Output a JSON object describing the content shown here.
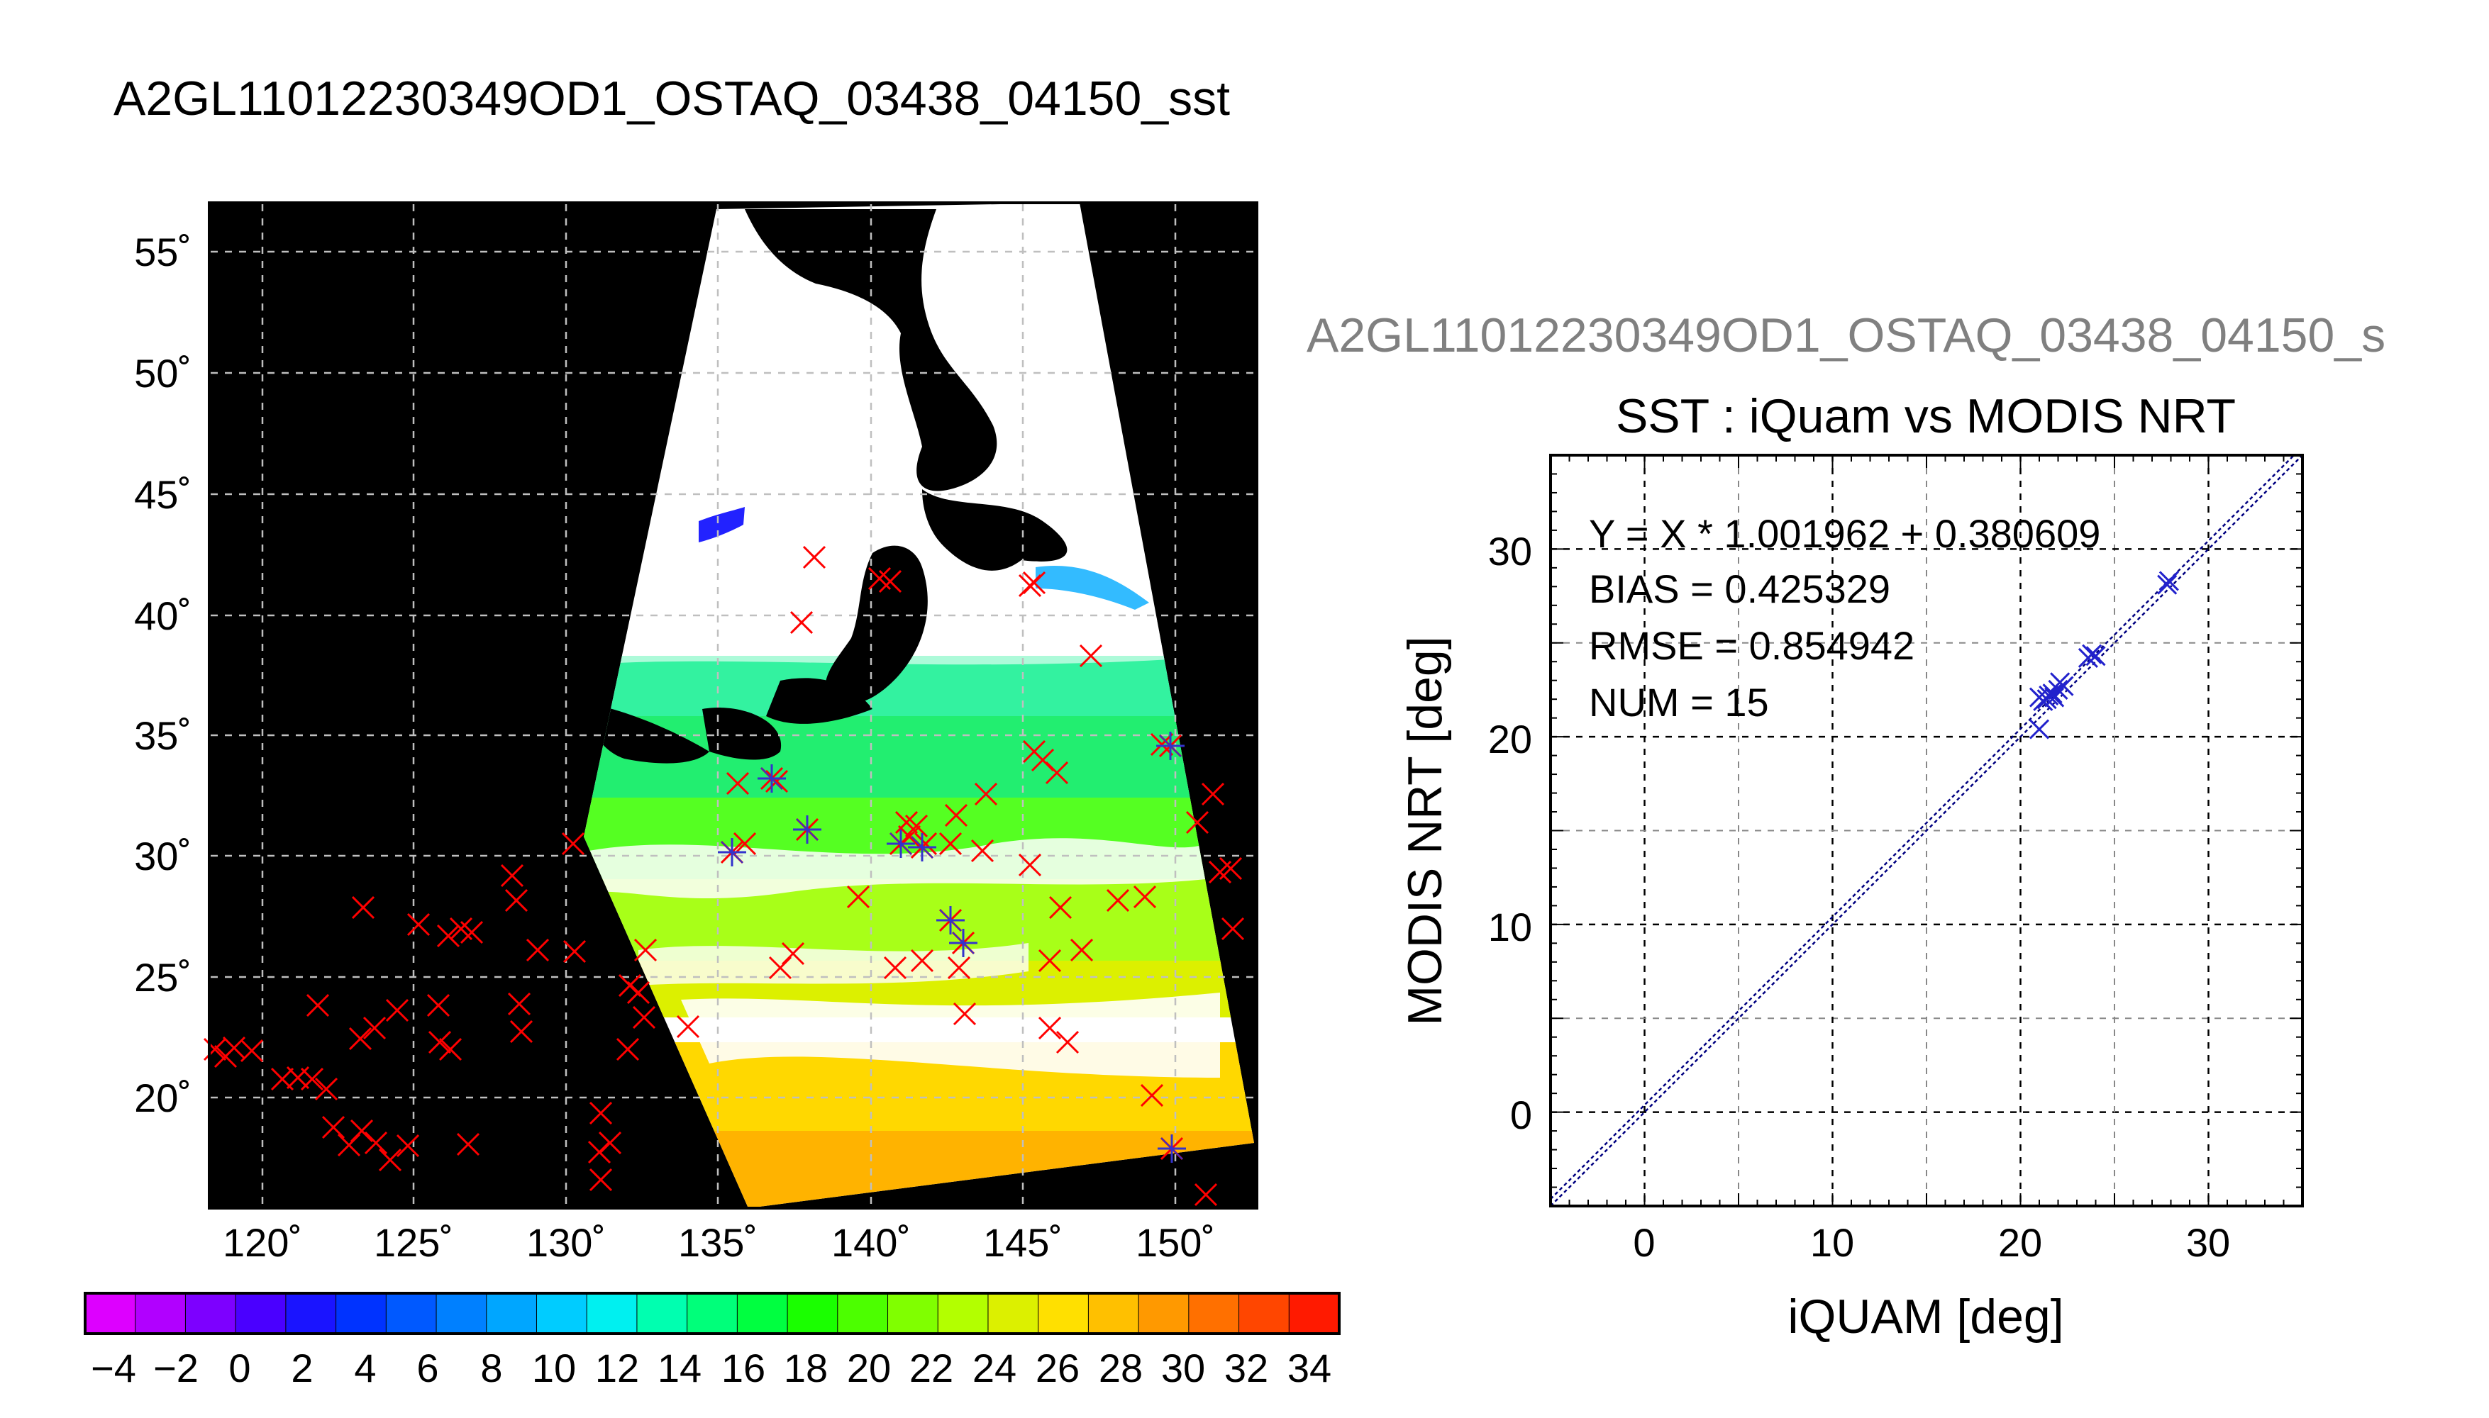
{
  "main_title": "A2GL11012230349OD1_OSTAQ_03438_04150_sst",
  "map": {
    "lon_ticks": [
      "120˚",
      "125˚",
      "130˚",
      "135˚",
      "140˚",
      "145˚",
      "150˚"
    ],
    "lat_ticks": [
      "55˚",
      "50˚",
      "45˚",
      "40˚",
      "35˚",
      "30˚",
      "25˚",
      "20˚"
    ],
    "colors": {
      "background": "#000000",
      "cloud": "#ffffff",
      "grid": "#bfbfbf",
      "buoy_marker": "#ff0000",
      "matchup_marker": "#3333cc"
    }
  },
  "colorbar": {
    "tick_labels": [
      "−4",
      "−2",
      "0",
      "2",
      "4",
      "6",
      "8",
      "10",
      "12",
      "14",
      "16",
      "18",
      "20",
      "22",
      "24",
      "26",
      "28",
      "30",
      "32",
      "34"
    ],
    "colors": [
      "#dd00ff",
      "#b100ff",
      "#7d00ff",
      "#4a00ff",
      "#1a14ff",
      "#0033ff",
      "#0059ff",
      "#0080ff",
      "#00a6ff",
      "#00ccff",
      "#00f0f0",
      "#00ffb0",
      "#00ff7a",
      "#00ff40",
      "#1aff00",
      "#4cff00",
      "#80ff00",
      "#b3ff00",
      "#dcf000",
      "#ffe000",
      "#ffc000",
      "#ff9900",
      "#ff7000",
      "#ff4600",
      "#ff1a00"
    ]
  },
  "scatter_header": "A2GL11012230349OD1_OSTAQ_03438_04150_s",
  "chart_data": {
    "type": "scatter",
    "title": "SST : iQuam vs MODIS NRT",
    "xlabel": "iQUAM [deg]",
    "ylabel": "MODIS NRT [deg]",
    "xlim": [
      -5,
      35
    ],
    "ylim": [
      -5,
      35
    ],
    "xticks": [
      "0",
      "10",
      "20",
      "30"
    ],
    "yticks": [
      "0",
      "10",
      "20",
      "30"
    ],
    "grid": true,
    "annotations": [
      "Y = X * 1.001962 + 0.380609",
      "BIAS = 0.425329",
      "RMSE = 0.854942",
      "NUM = 15"
    ],
    "fit": {
      "slope": 1.001962,
      "intercept": 0.380609
    },
    "points": [
      [
        21.0,
        20.4
      ],
      [
        21.0,
        22.1
      ],
      [
        21.2,
        21.9
      ],
      [
        21.4,
        22.0
      ],
      [
        21.5,
        22.2
      ],
      [
        21.7,
        22.3
      ],
      [
        21.8,
        22.1
      ],
      [
        22.0,
        22.5
      ],
      [
        22.1,
        22.9
      ],
      [
        22.3,
        22.7
      ],
      [
        23.6,
        24.2
      ],
      [
        23.8,
        24.4
      ],
      [
        24.0,
        24.3
      ],
      [
        27.8,
        28.1
      ],
      [
        27.9,
        28.3
      ]
    ],
    "marker_color": "#2222cc",
    "line_color": "#000080"
  }
}
